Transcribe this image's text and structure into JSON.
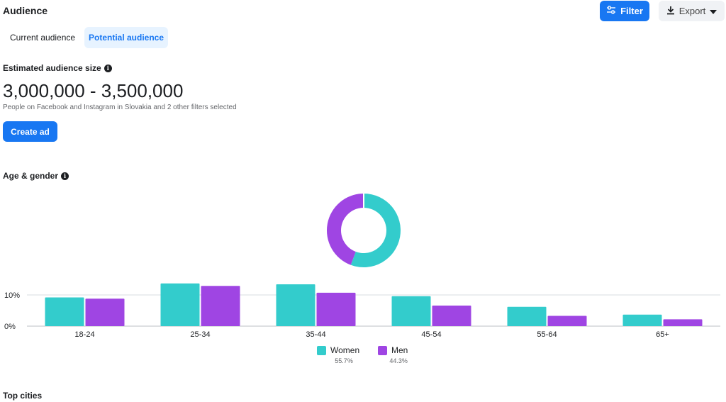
{
  "header": {
    "title": "Audience",
    "filter_label": "Filter",
    "export_label": "Export"
  },
  "tabs": [
    {
      "label": "Current audience",
      "active": false
    },
    {
      "label": "Potential audience",
      "active": true
    }
  ],
  "estimate": {
    "label": "Estimated audience size",
    "range": "3,000,000 - 3,500,000",
    "description": "People on Facebook and Instagram in Slovakia and 2 other filters selected",
    "create_ad_label": "Create ad"
  },
  "age_gender": {
    "label": "Age & gender"
  },
  "top_cities_label": "Top cities",
  "colors": {
    "women": "#33cccc",
    "men": "#9f45e3",
    "accent": "#1877f2"
  },
  "chart_data": [
    {
      "type": "pie",
      "donut": true,
      "labels": [
        "Women",
        "Men"
      ],
      "values": [
        55.7,
        44.3
      ]
    },
    {
      "type": "bar",
      "categories": [
        "18-24",
        "25-34",
        "35-44",
        "45-54",
        "55-64",
        "65+"
      ],
      "series": [
        {
          "name": "Women",
          "pct_label": "55.7%",
          "values": [
            9.2,
            13.7,
            13.4,
            9.6,
            6.2,
            3.7
          ]
        },
        {
          "name": "Men",
          "pct_label": "44.3%",
          "values": [
            8.8,
            12.9,
            10.7,
            6.6,
            3.3,
            2.2
          ]
        }
      ],
      "yticks": [
        "0%",
        "10%"
      ],
      "ytick_values": [
        0,
        10
      ],
      "ylim": [
        0,
        15
      ],
      "grid": true,
      "legend": "bottom"
    }
  ]
}
